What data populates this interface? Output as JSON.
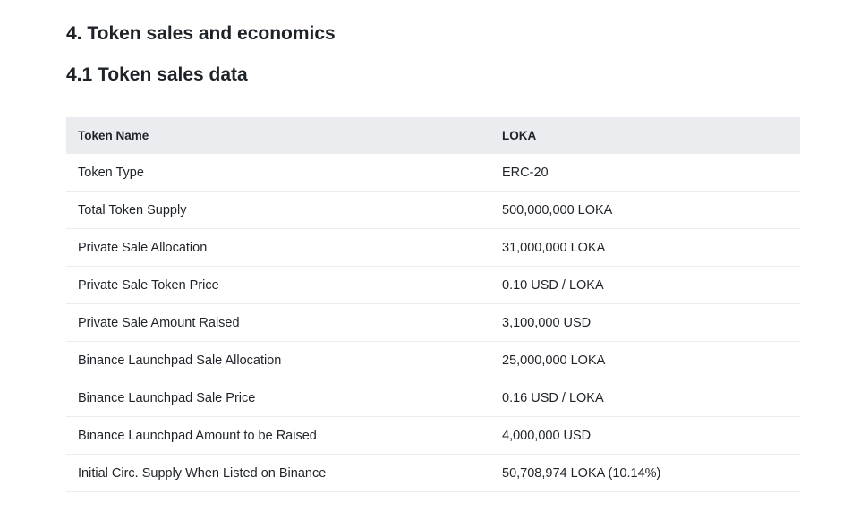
{
  "headings": {
    "section": "4. Token sales and economics",
    "subsection": "4.1 Token sales data"
  },
  "table": {
    "header": [
      "Token Name",
      "LOKA"
    ],
    "rows": [
      [
        "Token Type",
        "ERC-20"
      ],
      [
        "Total Token Supply",
        "500,000,000 LOKA"
      ],
      [
        "Private Sale Allocation",
        "31,000,000 LOKA"
      ],
      [
        "Private Sale Token Price",
        "0.10 USD / LOKA"
      ],
      [
        "Private Sale Amount Raised",
        "3,100,000 USD"
      ],
      [
        "Binance Launchpad Sale Allocation",
        "25,000,000 LOKA"
      ],
      [
        "Binance Launchpad Sale Price",
        "0.16 USD / LOKA"
      ],
      [
        "Binance Launchpad Amount to be Raised",
        "4,000,000 USD"
      ],
      [
        "Initial Circ. Supply When Listed on Binance",
        "50,708,974 LOKA (10.14%)"
      ]
    ]
  }
}
